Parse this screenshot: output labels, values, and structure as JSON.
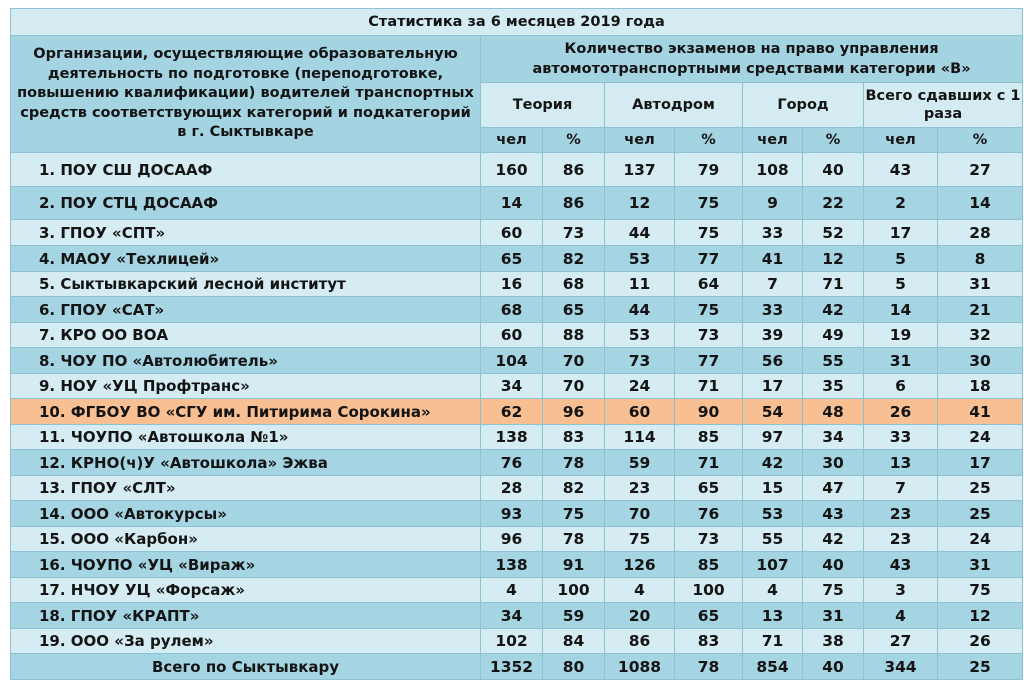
{
  "title": "Статистика за 6 месяцев 2019 года",
  "header": {
    "org_column": "Организации, осуществляющие образовательную деятельность по подготовке (переподготовке, повышению квалификации) водителей транспортных средств соответствующих категорий и подкатегорий в г. Сыктывкаре",
    "exam_group": "Количество экзаменов на право управления автомототранспортными средствами категории «В»",
    "groups": [
      "Теория",
      "Автодром",
      "Город",
      "Всего сдавших с 1 раза"
    ],
    "sub": [
      "чел",
      "%",
      "чел",
      "%",
      "чел",
      "%",
      "чел",
      "%"
    ]
  },
  "rows": [
    {
      "name": "1.   ПОУ СШ ДОСААФ",
      "v": [
        "160",
        "86",
        "137",
        "79",
        "108",
        "40",
        "43",
        "27"
      ]
    },
    {
      "name": "2.  ПОУ СТЦ ДОСААФ",
      "v": [
        "14",
        "86",
        "12",
        "75",
        "9",
        "22",
        "2",
        "14"
      ]
    },
    {
      "name": "3.  ГПОУ «СПТ»",
      "v": [
        "60",
        "73",
        "44",
        "75",
        "33",
        "52",
        "17",
        "28"
      ]
    },
    {
      "name": "4.  МАОУ «Техлицей»",
      "v": [
        "65",
        "82",
        "53",
        "77",
        "41",
        "12",
        "5",
        "8"
      ]
    },
    {
      "name": "5.  Сыктывкарский лесной институт",
      "v": [
        "16",
        "68",
        "11",
        "64",
        "7",
        "71",
        "5",
        "31"
      ]
    },
    {
      "name": "6.  ГПОУ «САТ»",
      "v": [
        "68",
        "65",
        "44",
        "75",
        "33",
        "42",
        "14",
        "21"
      ]
    },
    {
      "name": "7.  КРО ОО ВОА",
      "v": [
        "60",
        "88",
        "53",
        "73",
        "39",
        "49",
        "19",
        "32"
      ]
    },
    {
      "name": "8.  ЧОУ ПО «Автолюбитель»",
      "v": [
        "104",
        "70",
        "73",
        "77",
        "56",
        "55",
        "31",
        "30"
      ]
    },
    {
      "name": "9.  НОУ «УЦ Профтранс»",
      "v": [
        "34",
        "70",
        "24",
        "71",
        "17",
        "35",
        "6",
        "18"
      ]
    },
    {
      "name": "10.  ФГБОУ ВО «СГУ им. Питирима Сорокина»",
      "v": [
        "62",
        "96",
        "60",
        "90",
        "54",
        "48",
        "26",
        "41"
      ],
      "highlight": true
    },
    {
      "name": "11.  ЧОУПО «Автошкола №1»",
      "v": [
        "138",
        "83",
        "114",
        "85",
        "97",
        "34",
        "33",
        "24"
      ]
    },
    {
      "name": "12. КРНО(ч)У «Автошкола» Эжва",
      "v": [
        "76",
        "78",
        "59",
        "71",
        "42",
        "30",
        "13",
        "17"
      ]
    },
    {
      "name": "13. ГПОУ «СЛТ»",
      "v": [
        "28",
        "82",
        "23",
        "65",
        "15",
        "47",
        "7",
        "25"
      ]
    },
    {
      "name": "14.  ООО «Автокурсы»",
      "v": [
        "93",
        "75",
        "70",
        "76",
        "53",
        "43",
        "23",
        "25"
      ]
    },
    {
      "name": "15.  ООО «Карбон»",
      "v": [
        "96",
        "78",
        "75",
        "73",
        "55",
        "42",
        "23",
        "24"
      ]
    },
    {
      "name": "16.  ЧОУПО «УЦ «Вираж»",
      "v": [
        "138",
        "91",
        "126",
        "85",
        "107",
        "40",
        "43",
        "31"
      ]
    },
    {
      "name": "17.  НЧОУ УЦ «Форсаж»",
      "v": [
        "4",
        "100",
        "4",
        "100",
        "4",
        "75",
        "3",
        "75"
      ]
    },
    {
      "name": "18.  ГПОУ «КРАПТ»",
      "v": [
        "34",
        "59",
        "20",
        "65",
        "13",
        "31",
        "4",
        "12"
      ]
    },
    {
      "name": "19.  ООО «За рулем»",
      "v": [
        "102",
        "84",
        "86",
        "83",
        "71",
        "38",
        "27",
        "26"
      ]
    }
  ],
  "total": {
    "name": "Всего по Сыктывкару",
    "v": [
      "1352",
      "80",
      "1088",
      "78",
      "854",
      "40",
      "344",
      "25"
    ]
  },
  "colors": {
    "light_row": "#d5ecf2",
    "dark_row": "#a5d4e2",
    "highlight_row": "#f8bf93",
    "border": "#8cc3d3"
  }
}
